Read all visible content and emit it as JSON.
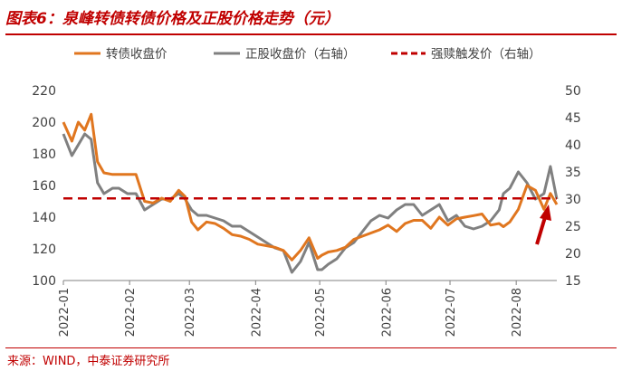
{
  "title": "图表6：泉峰转债转债价格及正股价格走势（元）",
  "source": "来源：WIND，中泰证券研究所",
  "chart_data": {
    "type": "line",
    "x_ticks": [
      "2022-01",
      "2022-02",
      "2022-03",
      "2022-04",
      "2022-05",
      "2022-06",
      "2022-07",
      "2022-08"
    ],
    "x_range": [
      "2022-01-01",
      "2022-08-20"
    ],
    "y_left": {
      "min": 100,
      "max": 220,
      "ticks": [
        100,
        120,
        140,
        160,
        180,
        200,
        220
      ]
    },
    "y_right": {
      "min": 15,
      "max": 50,
      "ticks": [
        15,
        20,
        25,
        30,
        35,
        40,
        45,
        50
      ]
    },
    "grid": false,
    "legend_position": "top",
    "series": [
      {
        "name": "转债收盘价",
        "axis": "left",
        "color": "#e0761f",
        "style": "solid",
        "x": [
          "2022-01-01",
          "2022-01-05",
          "2022-01-08",
          "2022-01-11",
          "2022-01-14",
          "2022-01-17",
          "2022-01-20",
          "2022-01-24",
          "2022-01-27",
          "2022-01-31",
          "2022-02-04",
          "2022-02-08",
          "2022-02-12",
          "2022-02-16",
          "2022-02-20",
          "2022-02-24",
          "2022-02-27",
          "2022-03-02",
          "2022-03-05",
          "2022-03-09",
          "2022-03-13",
          "2022-03-17",
          "2022-03-21",
          "2022-03-25",
          "2022-03-29",
          "2022-04-02",
          "2022-04-06",
          "2022-04-10",
          "2022-04-14",
          "2022-04-18",
          "2022-04-22",
          "2022-04-26",
          "2022-04-30",
          "2022-05-02",
          "2022-05-05",
          "2022-05-09",
          "2022-05-13",
          "2022-05-17",
          "2022-05-21",
          "2022-05-25",
          "2022-05-29",
          "2022-06-02",
          "2022-06-06",
          "2022-06-10",
          "2022-06-14",
          "2022-06-18",
          "2022-06-22",
          "2022-06-26",
          "2022-06-30",
          "2022-07-04",
          "2022-07-08",
          "2022-07-12",
          "2022-07-16",
          "2022-07-20",
          "2022-07-24",
          "2022-07-26",
          "2022-07-29",
          "2022-08-02",
          "2022-08-06",
          "2022-08-10",
          "2022-08-14",
          "2022-08-17",
          "2022-08-20"
        ],
        "y": [
          200,
          188,
          200,
          195,
          205,
          175,
          168,
          167,
          167,
          167,
          167,
          150,
          149,
          152,
          150,
          157,
          153,
          137,
          132,
          137,
          136,
          133,
          129,
          128,
          126,
          123,
          122,
          121,
          119,
          113,
          119,
          127,
          114,
          116,
          118,
          119,
          121,
          126,
          128,
          130,
          132,
          135,
          131,
          136,
          138,
          138,
          133,
          140,
          135,
          139,
          140,
          141,
          142,
          135,
          136,
          134,
          137,
          145,
          160,
          157,
          145,
          155,
          148
        ]
      },
      {
        "name": "正股收盘价（右轴）",
        "axis": "right",
        "color": "#808080",
        "style": "solid",
        "x": [
          "2022-01-01",
          "2022-01-05",
          "2022-01-08",
          "2022-01-11",
          "2022-01-14",
          "2022-01-17",
          "2022-01-20",
          "2022-01-24",
          "2022-01-27",
          "2022-01-31",
          "2022-02-04",
          "2022-02-08",
          "2022-02-12",
          "2022-02-16",
          "2022-02-20",
          "2022-02-24",
          "2022-02-27",
          "2022-03-02",
          "2022-03-05",
          "2022-03-09",
          "2022-03-13",
          "2022-03-17",
          "2022-03-21",
          "2022-03-25",
          "2022-03-29",
          "2022-04-02",
          "2022-04-06",
          "2022-04-10",
          "2022-04-14",
          "2022-04-18",
          "2022-04-22",
          "2022-04-26",
          "2022-04-30",
          "2022-05-02",
          "2022-05-05",
          "2022-05-09",
          "2022-05-13",
          "2022-05-17",
          "2022-05-21",
          "2022-05-25",
          "2022-05-29",
          "2022-06-02",
          "2022-06-06",
          "2022-06-10",
          "2022-06-14",
          "2022-06-18",
          "2022-06-22",
          "2022-06-26",
          "2022-06-30",
          "2022-07-04",
          "2022-07-08",
          "2022-07-12",
          "2022-07-16",
          "2022-07-20",
          "2022-07-24",
          "2022-07-26",
          "2022-07-29",
          "2022-08-02",
          "2022-08-06",
          "2022-08-10",
          "2022-08-14",
          "2022-08-17",
          "2022-08-20"
        ],
        "y": [
          42,
          38,
          40,
          42,
          41,
          33,
          31,
          32,
          32,
          31,
          31,
          28,
          29,
          30,
          30,
          31,
          30,
          28,
          27,
          27,
          26.5,
          26,
          25,
          25,
          24,
          23,
          22,
          21,
          20.5,
          16.5,
          18.5,
          22,
          17,
          17,
          18,
          19,
          21,
          22,
          24,
          26,
          27,
          26.5,
          28,
          29,
          29,
          27,
          28,
          29,
          26,
          27,
          25,
          24.5,
          25,
          26,
          28,
          31,
          32,
          35,
          33,
          30,
          31,
          36,
          30
        ]
      },
      {
        "name": "强赎触发价（右轴）",
        "axis": "right",
        "color": "#c00000",
        "style": "dashed",
        "x": [
          "2022-01-01",
          "2022-08-20"
        ],
        "y": [
          30.14,
          30.14
        ]
      }
    ]
  }
}
